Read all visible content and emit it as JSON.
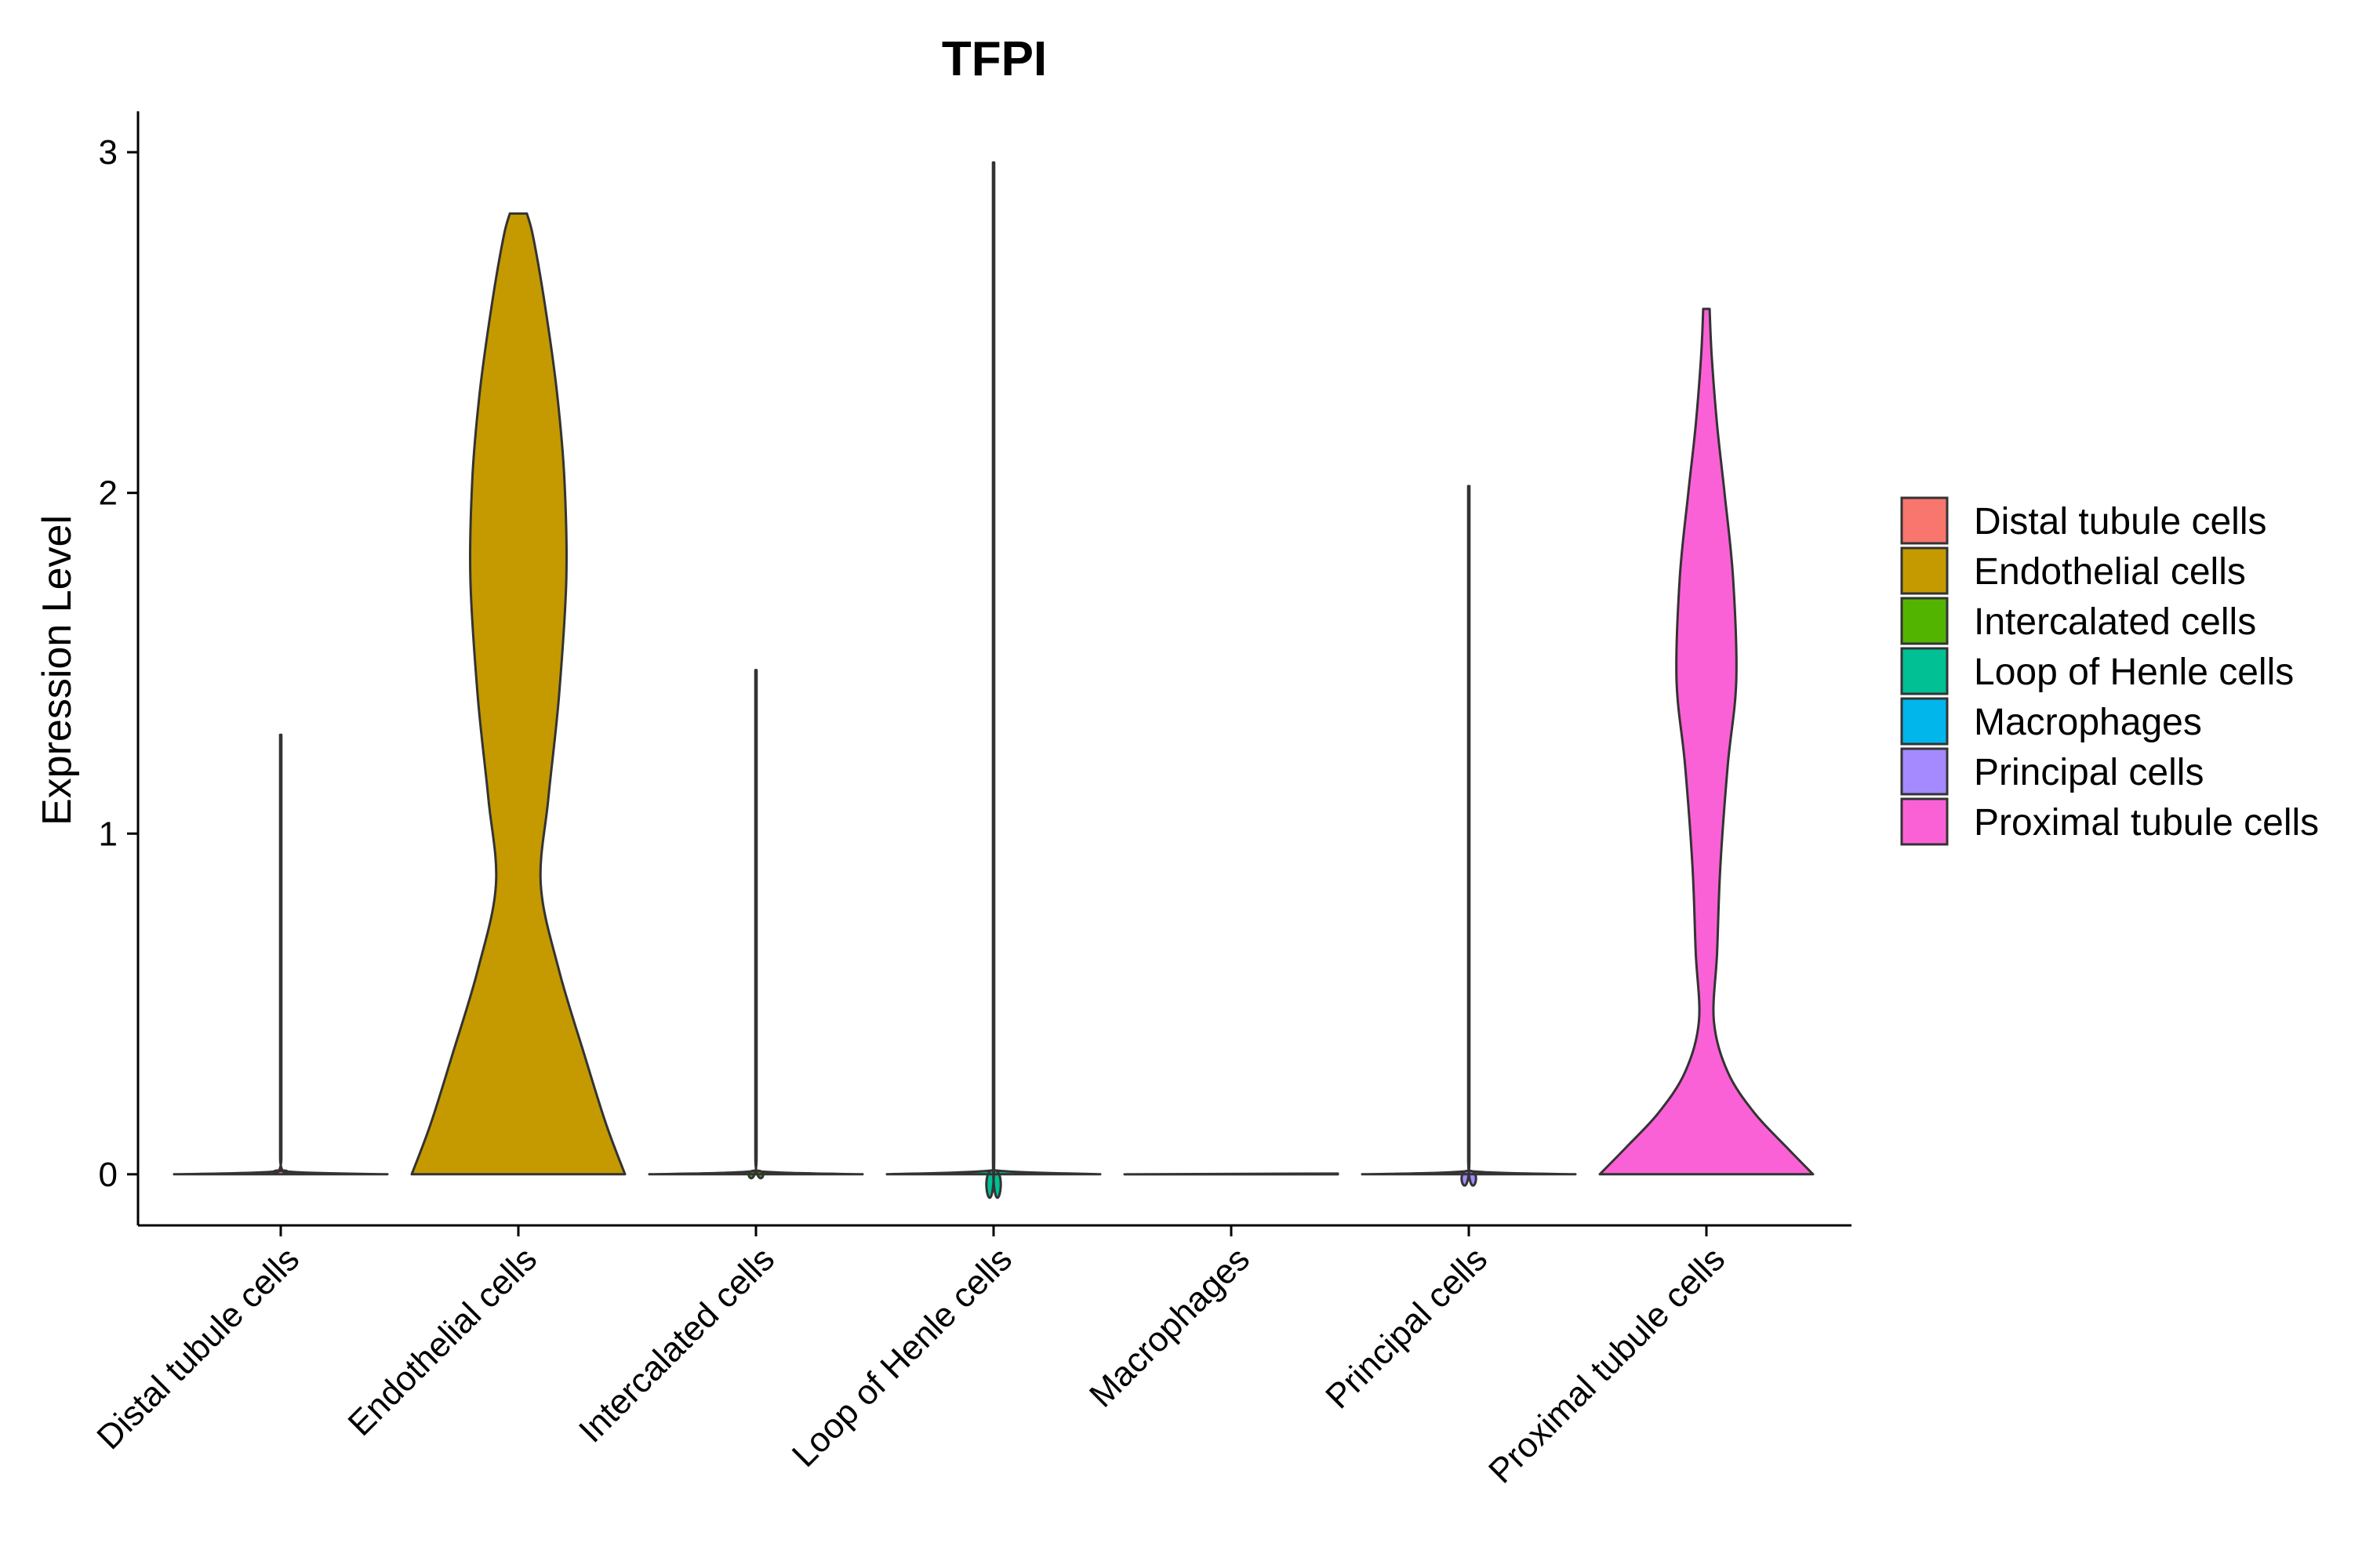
{
  "chart_data": {
    "type": "violin",
    "title": "TFPI",
    "xlabel": "",
    "ylabel": "Expression Level",
    "ylim": [
      -0.15,
      3.12
    ],
    "yticks": [
      0,
      1,
      2,
      3
    ],
    "grid": false,
    "legend_position": "right",
    "categories": [
      "Distal tubule cells",
      "Endothelial cells",
      "Intercalated cells",
      "Loop of Henle cells",
      "Macrophages",
      "Principal cells",
      "Proximal tubule cells"
    ],
    "colors": [
      "#F8766D",
      "#C49A00",
      "#53B400",
      "#00C094",
      "#00B6EB",
      "#A58AFF",
      "#FB61D7"
    ],
    "series": [
      {
        "name": "Distal tubule cells",
        "max": 1.29,
        "profile": [
          [
            0,
            1.0
          ],
          [
            0.01,
            0.006
          ],
          [
            0.05,
            0.005
          ],
          [
            0.5,
            0.005
          ],
          [
            1.0,
            0.005
          ],
          [
            1.29,
            0.005
          ]
        ]
      },
      {
        "name": "Endothelial cells",
        "max": 2.82,
        "profile": [
          [
            0,
            1.0
          ],
          [
            0.15,
            0.82
          ],
          [
            0.35,
            0.62
          ],
          [
            0.6,
            0.38
          ],
          [
            0.85,
            0.21
          ],
          [
            1.1,
            0.28
          ],
          [
            1.4,
            0.38
          ],
          [
            1.75,
            0.45
          ],
          [
            2.05,
            0.43
          ],
          [
            2.3,
            0.36
          ],
          [
            2.55,
            0.25
          ],
          [
            2.75,
            0.14
          ],
          [
            2.82,
            0.08
          ]
        ]
      },
      {
        "name": "Intercalated cells",
        "max": 1.48,
        "profile": [
          [
            0,
            1.0
          ],
          [
            0.01,
            0.006
          ],
          [
            0.05,
            0.005
          ],
          [
            0.7,
            0.005
          ],
          [
            1.48,
            0.005
          ]
        ]
      },
      {
        "name": "Loop of Henle cells",
        "max": 2.97,
        "profile": [
          [
            0,
            1.0
          ],
          [
            0.012,
            0.006
          ],
          [
            0.05,
            0.005
          ],
          [
            1.5,
            0.005
          ],
          [
            2.97,
            0.005
          ]
        ]
      },
      {
        "name": "Macrophages",
        "max": 0,
        "profile": [
          [
            0,
            1.0
          ]
        ]
      },
      {
        "name": "Principal cells",
        "max": 2.02,
        "profile": [
          [
            0,
            1.0
          ],
          [
            0.01,
            0.006
          ],
          [
            0.05,
            0.005
          ],
          [
            1.0,
            0.005
          ],
          [
            2.02,
            0.005
          ]
        ]
      },
      {
        "name": "Proximal tubule cells",
        "max": 2.54,
        "profile": [
          [
            0,
            1.0
          ],
          [
            0.08,
            0.75
          ],
          [
            0.18,
            0.45
          ],
          [
            0.3,
            0.2
          ],
          [
            0.45,
            0.07
          ],
          [
            0.65,
            0.1
          ],
          [
            0.9,
            0.13
          ],
          [
            1.2,
            0.2
          ],
          [
            1.45,
            0.28
          ],
          [
            1.75,
            0.25
          ],
          [
            2.0,
            0.17
          ],
          [
            2.2,
            0.1
          ],
          [
            2.4,
            0.05
          ],
          [
            2.54,
            0.03
          ]
        ]
      }
    ]
  }
}
